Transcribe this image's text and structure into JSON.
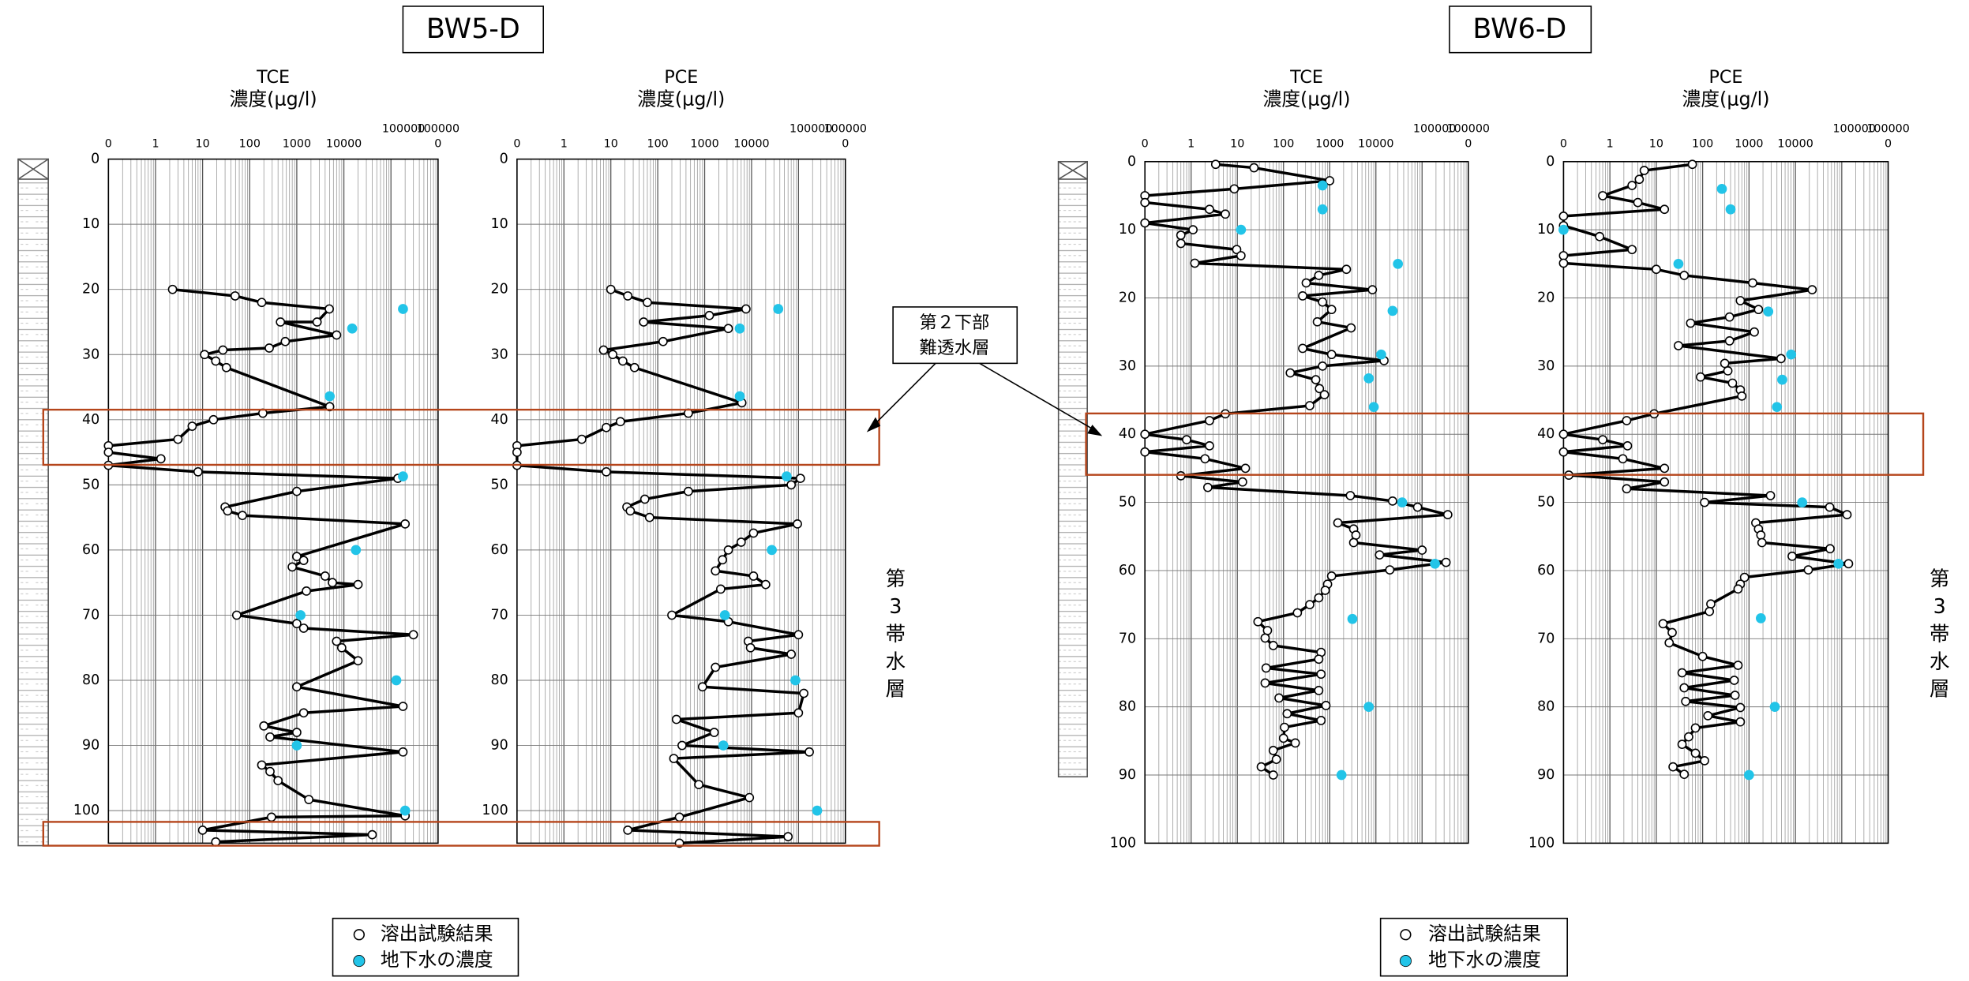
{
  "wells": [
    {
      "name": "BW5-D"
    },
    {
      "name": "BW6-D"
    }
  ],
  "annotations": {
    "aquitard": [
      "第２下部",
      "難透水層"
    ],
    "aquifer_left": [
      "第",
      "3",
      "帯",
      "水",
      "層"
    ],
    "aquifer_right": [
      "第",
      "3",
      "帯",
      "水",
      "層"
    ]
  },
  "chart_data": [
    {
      "type": "scatter",
      "title": "TCE",
      "x_label": "濃度(μg/l)",
      "log_x": true,
      "grid": true,
      "y_inverted": true,
      "xlim": [
        0.1,
        1000000
      ],
      "xticks": [
        {
          "value": 0.1,
          "label": "0"
        },
        1,
        10,
        100,
        1000,
        10000,
        100000,
        {
          "value": 1000000,
          "label": [
            "100000",
            "0"
          ]
        }
      ],
      "ylim": [
        0,
        105
      ],
      "yticks": [
        0,
        10,
        20,
        30,
        40,
        50,
        60,
        70,
        80,
        90,
        100
      ],
      "series": [
        {
          "name": "溶出試験結果",
          "color": "#000000",
          "marker": "open-circle",
          "connect": true,
          "x": [
            2.3,
            49,
            180,
            4900,
            2700,
            450,
            7000,
            570,
            260,
            27,
            11,
            19,
            32,
            5000,
            190,
            17,
            6,
            3,
            0.1,
            0.1,
            1.3,
            0.1,
            8,
            140000,
            1000,
            30,
            34,
            70,
            200000,
            1000,
            1400,
            800,
            4000,
            5700,
            20000,
            1600,
            53,
            1000,
            1400,
            300000,
            7000,
            9000,
            20000,
            1000,
            180000,
            1400,
            200,
            1000,
            270,
            180000,
            180,
            270,
            400,
            1800,
            200000,
            290,
            10,
            40000,
            19
          ],
          "y": [
            20,
            21,
            22,
            23,
            25,
            25,
            27,
            28,
            29,
            29.3,
            30,
            31,
            32,
            38,
            39,
            40,
            41,
            43,
            44,
            45,
            46,
            47,
            48,
            49,
            51,
            53.4,
            54,
            54.7,
            56,
            61,
            61.6,
            62.6,
            64,
            65,
            65.3,
            66.3,
            70,
            71.3,
            72,
            73,
            74,
            75,
            77,
            81,
            84,
            85,
            87,
            88,
            88.7,
            91,
            93,
            94,
            95.4,
            98.3,
            100.8,
            101,
            103,
            103.7,
            104.8
          ]
        },
        {
          "name": "地下水の濃度",
          "color": "#22c4e8",
          "marker": "filled-circle",
          "connect": false,
          "x": [
            180000,
            15000,
            5000,
            180000,
            18000,
            1200,
            130000,
            1000,
            200000
          ],
          "y": [
            23,
            26,
            36.4,
            48.7,
            60,
            70,
            80,
            90,
            100
          ]
        }
      ]
    },
    {
      "type": "scatter",
      "title": "PCE",
      "x_label": "濃度(μg/l)",
      "log_x": true,
      "grid": true,
      "y_inverted": true,
      "xlim": [
        0.1,
        1000000
      ],
      "xticks": [
        {
          "value": 0.1,
          "label": "0"
        },
        1,
        10,
        100,
        1000,
        10000,
        100000,
        {
          "value": 1000000,
          "label": [
            "100000",
            "0"
          ]
        }
      ],
      "ylim": [
        0,
        105
      ],
      "yticks": [
        0,
        10,
        20,
        30,
        40,
        50,
        60,
        70,
        80,
        90,
        100
      ],
      "series": [
        {
          "name": "溶出試験結果",
          "color": "#000000",
          "marker": "open-circle",
          "connect": true,
          "x": [
            10,
            23,
            60,
            7600,
            1260,
            50,
            3200,
            130,
            7,
            11,
            18,
            32,
            6200,
            450,
            16,
            8,
            2.4,
            0.1,
            0.1,
            0.1,
            8,
            110000,
            70000,
            450,
            53,
            22,
            26,
            67,
            95000,
            11000,
            6000,
            3200,
            2400,
            1700,
            11000,
            20000,
            2200,
            200,
            3200,
            100000,
            8500,
            9500,
            70000,
            1700,
            900,
            130000,
            100000,
            250,
            1600,
            330,
            170000,
            220,
            750,
            9000,
            290,
            23,
            60000,
            290
          ],
          "y": [
            20,
            21,
            22,
            23,
            24,
            25,
            26,
            28,
            29.3,
            30,
            31,
            32,
            37.4,
            39,
            40.3,
            41.2,
            43,
            44,
            45,
            47,
            48,
            49,
            50,
            51,
            52.2,
            53.4,
            54,
            55,
            56,
            57.4,
            58.8,
            60,
            61.5,
            63.2,
            64,
            65.3,
            66,
            70,
            71,
            73,
            74,
            75,
            76,
            78,
            81,
            82,
            85,
            86,
            88,
            90,
            91,
            92,
            96,
            98,
            101,
            103,
            104,
            105
          ]
        },
        {
          "name": "地下水の濃度",
          "color": "#22c4e8",
          "marker": "filled-circle",
          "connect": false,
          "x": [
            37000,
            5600,
            5600,
            56000,
            27000,
            2700,
            86000,
            2500,
            250000
          ],
          "y": [
            23,
            26,
            36.4,
            48.7,
            60,
            70,
            80,
            90,
            100
          ]
        }
      ]
    },
    {
      "type": "scatter",
      "title": "TCE",
      "x_label": "濃度(μg/l)",
      "log_x": true,
      "grid": true,
      "y_inverted": true,
      "xlim": [
        0.1,
        1000000
      ],
      "xticks": [
        {
          "value": 0.1,
          "label": "0"
        },
        1,
        10,
        100,
        1000,
        10000,
        100000,
        {
          "value": 1000000,
          "label": [
            "100000",
            "0"
          ]
        }
      ],
      "ylim": [
        0,
        100
      ],
      "yticks": [
        0,
        10,
        20,
        30,
        40,
        50,
        60,
        70,
        80,
        90,
        100
      ],
      "series": [
        {
          "name": "溶出試験結果",
          "color": "#000000",
          "marker": "open-circle",
          "connect": true,
          "x": [
            3.4,
            23,
            1000,
            8.6,
            0.1,
            0.1,
            2.5,
            5.5,
            0.1,
            1.1,
            0.6,
            0.6,
            9.7,
            12,
            1.2,
            2300,
            580,
            310,
            8400,
            260,
            700,
            1100,
            540,
            2900,
            260,
            1100,
            15000,
            700,
            140,
            500,
            600,
            770,
            370,
            5.5,
            2.5,
            0.1,
            0.8,
            2.5,
            0.1,
            2,
            15,
            0.6,
            13,
            2.3,
            2800,
            23000,
            80000,
            360000,
            1500,
            3300,
            3700,
            3300,
            100000,
            12000,
            330000,
            20000,
            1100,
            900,
            800,
            580,
            370,
            200,
            28,
            45,
            40,
            60,
            650,
            580,
            42,
            650,
            40,
            580,
            80,
            830,
            120,
            650,
            105,
            100,
            180,
            60,
            70,
            33,
            60
          ],
          "y": [
            0.4,
            0.9,
            2.8,
            4,
            5,
            6,
            7,
            7.7,
            9,
            10,
            10.8,
            12,
            12.9,
            13.8,
            14.9,
            15.8,
            16.7,
            17.8,
            18.8,
            19.7,
            20.6,
            21.7,
            23.5,
            24.4,
            27.4,
            28.3,
            29.2,
            30,
            31,
            32,
            33.3,
            34.2,
            35.8,
            37,
            38,
            40,
            40.8,
            41.7,
            42.6,
            43.6,
            45,
            46.1,
            47,
            47.8,
            49,
            49.8,
            50.7,
            51.8,
            53,
            53.9,
            54.8,
            55.9,
            57,
            57.7,
            58.8,
            59.9,
            60.8,
            62,
            62.9,
            64,
            65,
            66.2,
            67.5,
            68.8,
            69.9,
            71,
            72,
            73,
            74.3,
            75.2,
            76.5,
            77.6,
            78.7,
            79.8,
            81,
            82,
            83,
            84.6,
            85.3,
            86.4,
            87.7,
            88.8,
            90
          ]
        },
        {
          "name": "地下水の濃度",
          "color": "#22c4e8",
          "marker": "filled-circle",
          "connect": false,
          "x": [
            700,
            700,
            12,
            30000,
            23000,
            13000,
            7000,
            9000,
            37000,
            190000,
            3100,
            7000,
            1800
          ],
          "y": [
            3.5,
            7,
            10,
            15,
            21.9,
            28.3,
            31.8,
            36,
            50,
            59,
            67.1,
            80,
            90
          ]
        }
      ]
    },
    {
      "type": "scatter",
      "title": "PCE",
      "x_label": "濃度(μg/l)",
      "log_x": true,
      "grid": true,
      "y_inverted": true,
      "xlim": [
        0.1,
        1000000
      ],
      "xticks": [
        {
          "value": 0.1,
          "label": "0"
        },
        1,
        10,
        100,
        1000,
        10000,
        100000,
        {
          "value": 1000000,
          "label": [
            "100000",
            "0"
          ]
        }
      ],
      "ylim": [
        0,
        100
      ],
      "yticks": [
        0,
        10,
        20,
        30,
        40,
        50,
        60,
        70,
        80,
        90,
        100
      ],
      "series": [
        {
          "name": "溶出試験結果",
          "color": "#000000",
          "marker": "open-circle",
          "connect": true,
          "x": [
            60,
            5.5,
            4.3,
            3,
            0.7,
            4,
            15,
            0.1,
            0.1,
            0.6,
            3,
            0.1,
            0.1,
            10,
            40,
            1200,
            23000,
            650,
            1600,
            380,
            55,
            1300,
            380,
            30,
            4900,
            300,
            350,
            90,
            440,
            650,
            700,
            9,
            2.3,
            0.1,
            0.7,
            2.4,
            0.1,
            1.9,
            15,
            0.13,
            15,
            2.3,
            2900,
            110,
            55000,
            130000,
            1400,
            1600,
            1800,
            1900,
            56000,
            8500,
            140000,
            19000,
            800,
            650,
            580,
            150,
            140,
            14,
            22,
            19,
            100,
            580,
            36,
            480,
            40,
            500,
            43,
            650,
            130,
            650,
            70,
            50,
            36,
            70,
            110,
            23,
            40
          ],
          "y": [
            0.4,
            1.3,
            2.6,
            3.5,
            5,
            6,
            7,
            8,
            9.4,
            11,
            12.9,
            13.8,
            14.9,
            15.8,
            16.7,
            17.8,
            18.8,
            20.4,
            21.7,
            22.8,
            23.7,
            25,
            26.3,
            27,
            28.9,
            29.6,
            30.7,
            31.6,
            32.5,
            33.5,
            34.4,
            37,
            38,
            40,
            40.8,
            41.7,
            42.6,
            43.6,
            45,
            46,
            47,
            48,
            49,
            50,
            50.7,
            51.8,
            53,
            53.9,
            54.8,
            55.9,
            56.8,
            57.9,
            59,
            59.9,
            61,
            62,
            62.7,
            64.9,
            66,
            67.8,
            69.1,
            70.6,
            72.6,
            73.9,
            75,
            76.1,
            77.2,
            78.3,
            79.2,
            80.1,
            81.3,
            82.2,
            83.1,
            84.4,
            85.5,
            86.8,
            87.9,
            88.8,
            89.9
          ]
        },
        {
          "name": "地下水の濃度",
          "color": "#22c4e8",
          "marker": "filled-circle",
          "connect": false,
          "x": [
            260,
            400,
            0.1,
            30,
            2600,
            8100,
            5200,
            4000,
            14000,
            85000,
            1800,
            3600,
            1000
          ],
          "y": [
            4,
            7,
            10,
            15,
            22,
            28.3,
            32,
            36,
            50,
            59,
            67,
            80,
            90
          ]
        }
      ]
    }
  ]
}
